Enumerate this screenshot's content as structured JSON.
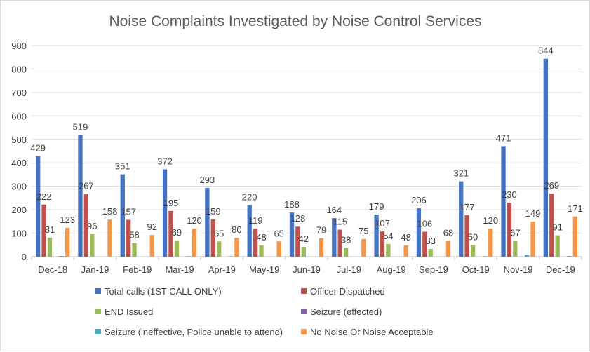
{
  "chart_data": {
    "type": "bar",
    "title": "Noise Complaints Investigated by Noise Control Services",
    "xlabel": "",
    "ylabel": "",
    "ylim": [
      0,
      900
    ],
    "yticks": [
      0,
      100,
      200,
      300,
      400,
      500,
      600,
      700,
      800,
      900
    ],
    "grid": true,
    "legend_position": "bottom",
    "categories": [
      "Dec-18",
      "Jan-19",
      "Feb-19",
      "Mar-19",
      "Apr-19",
      "May-19",
      "Jun-19",
      "Jul-19",
      "Aug-19",
      "Sep-19",
      "Oct-19",
      "Nov-19",
      "Dec-19"
    ],
    "series": [
      {
        "name": "Total calls (1ST CALL ONLY)",
        "color": "#4472c4",
        "labeled": true,
        "values": [
          429,
          519,
          351,
          372,
          293,
          220,
          188,
          164,
          179,
          206,
          321,
          471,
          844
        ]
      },
      {
        "name": "Officer Dispatched",
        "color": "#c0504d",
        "labeled": true,
        "values": [
          222,
          267,
          157,
          195,
          159,
          119,
          128,
          115,
          107,
          106,
          177,
          230,
          269
        ]
      },
      {
        "name": "END Issued",
        "color": "#9bbb59",
        "labeled": true,
        "values": [
          81,
          96,
          58,
          69,
          65,
          48,
          42,
          38,
          54,
          33,
          50,
          67,
          91
        ]
      },
      {
        "name": "Seizure (effected)",
        "color": "#8064a2",
        "labeled": false,
        "values": [
          0,
          0,
          0,
          0,
          0,
          0,
          0,
          0,
          0,
          0,
          0,
          0,
          0
        ]
      },
      {
        "name": "Seizure (ineffective, Police unable to attend)",
        "color": "#4bacc6",
        "labeled": false,
        "values": [
          3,
          0,
          0,
          2,
          2,
          0,
          0,
          0,
          0,
          0,
          2,
          7,
          3
        ]
      },
      {
        "name": "No Noise Or Noise Acceptable",
        "color": "#f79646",
        "labeled": true,
        "values": [
          123,
          158,
          92,
          120,
          80,
          65,
          79,
          75,
          48,
          68,
          120,
          149,
          171
        ]
      }
    ]
  }
}
